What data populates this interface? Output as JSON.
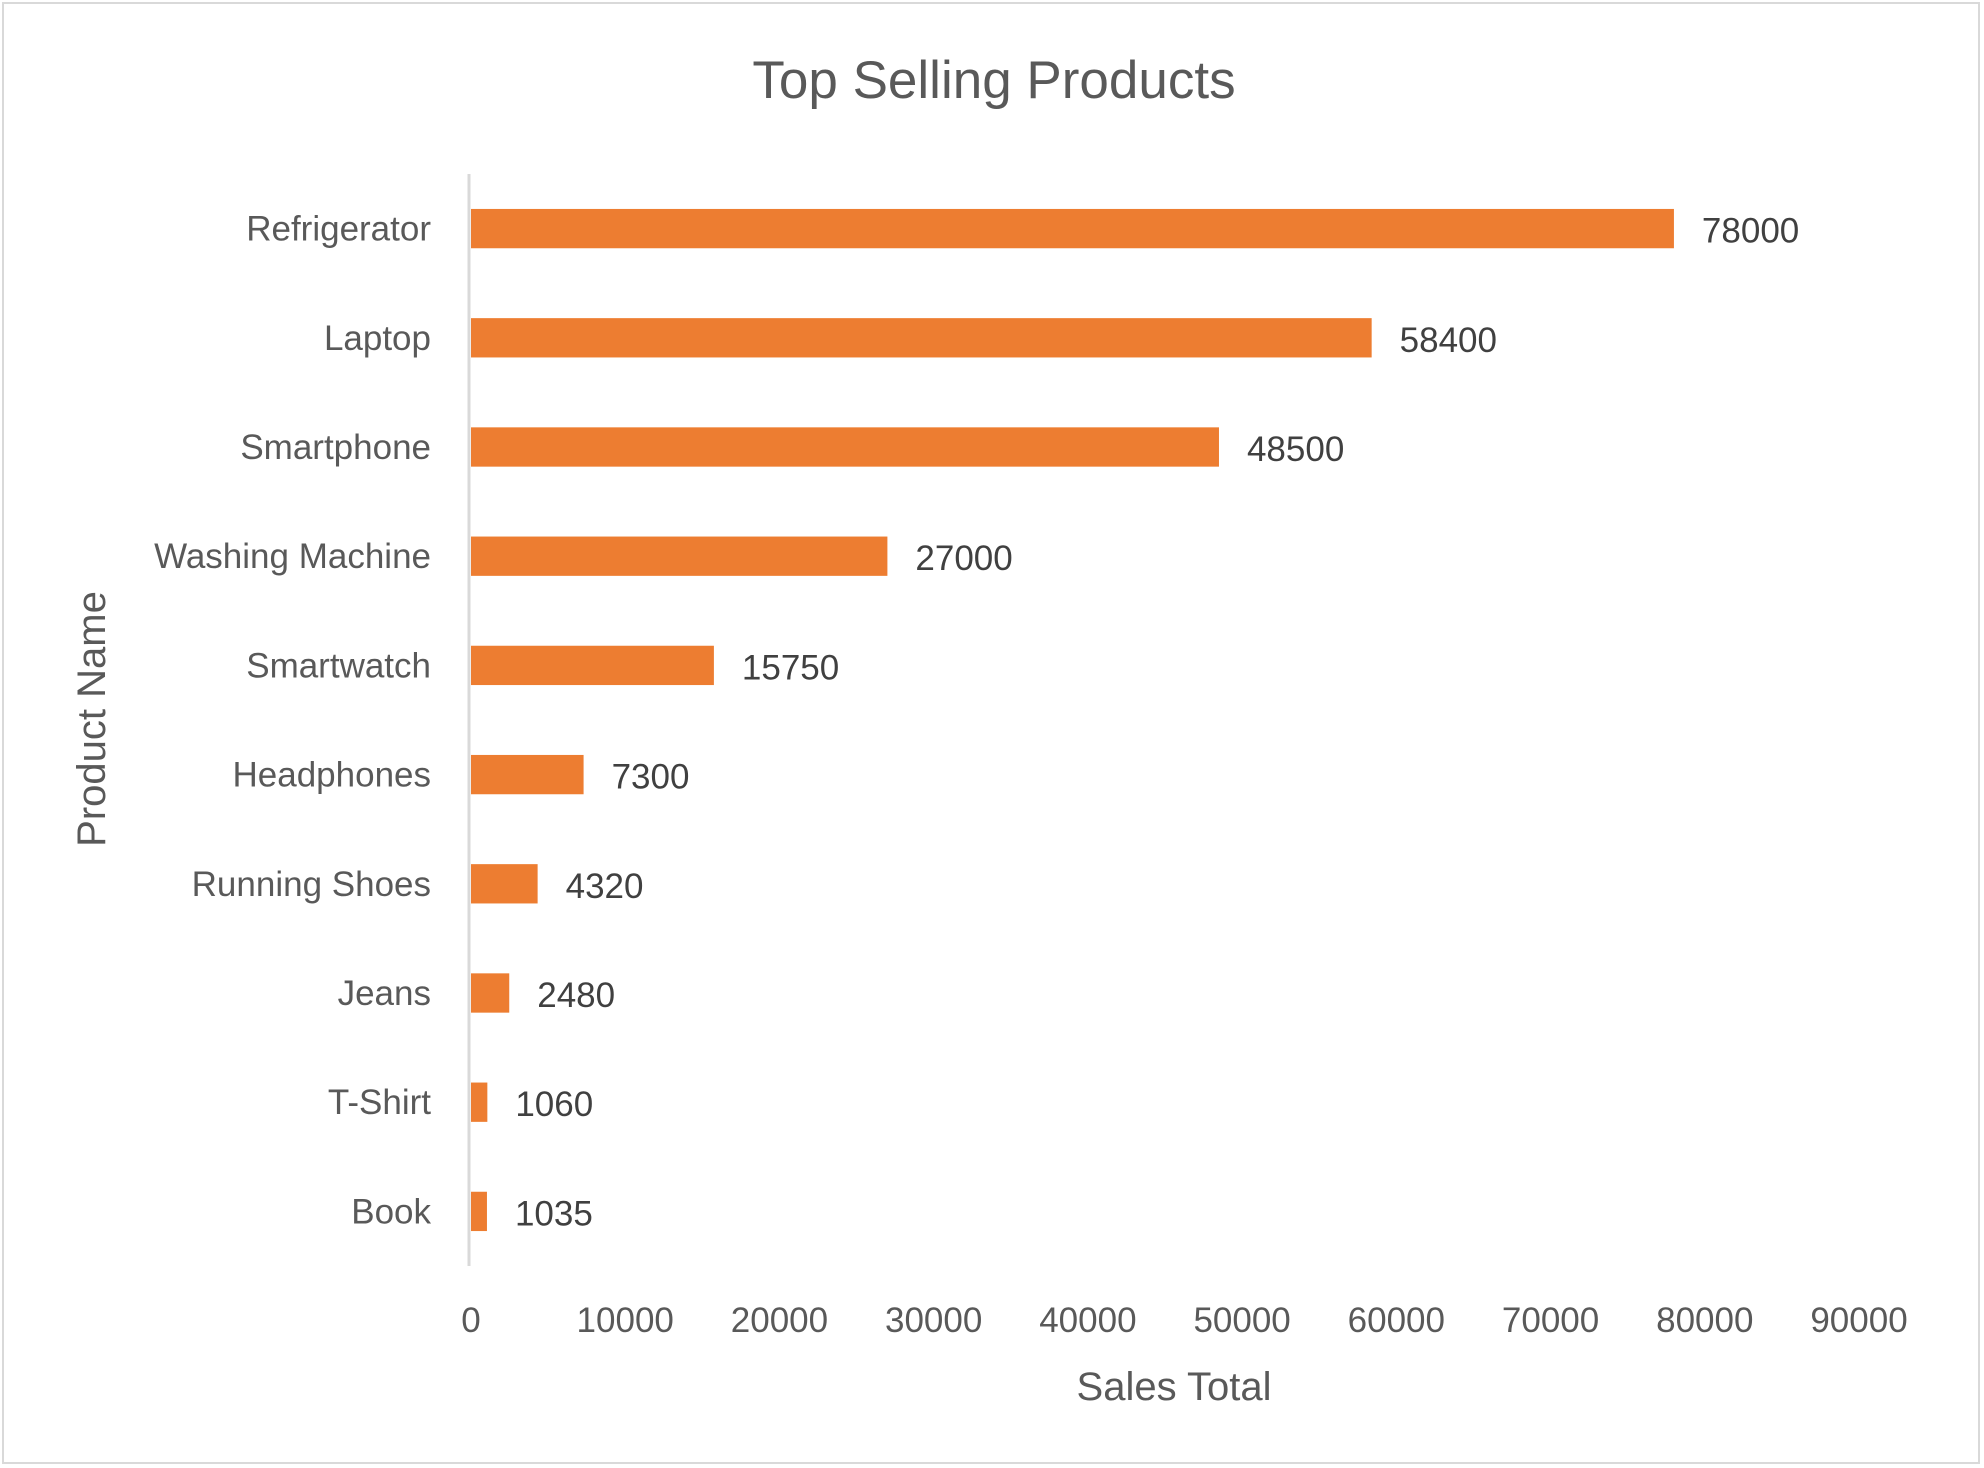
{
  "chart_data": {
    "type": "bar",
    "orientation": "horizontal",
    "title": "Top Selling Products",
    "xlabel": "Sales Total",
    "ylabel": "Product Name",
    "categories": [
      "Refrigerator",
      "Laptop",
      "Smartphone",
      "Washing Machine",
      "Smartwatch",
      "Headphones",
      "Running Shoes",
      "Jeans",
      "T-Shirt",
      "Book"
    ],
    "values": [
      78000,
      58400,
      48500,
      27000,
      15750,
      7300,
      4320,
      2480,
      1060,
      1035
    ],
    "xlim": [
      0,
      90000
    ],
    "xticks": [
      "0",
      "10000",
      "20000",
      "30000",
      "40000",
      "50000",
      "60000",
      "70000",
      "80000",
      "90000"
    ],
    "data_labels": [
      "78000",
      "58400",
      "48500",
      "27000",
      "15750",
      "7300",
      "4320",
      "2480",
      "1060",
      "1035"
    ],
    "grid": false,
    "legend": "none",
    "bar_color": "#ED7D31"
  }
}
